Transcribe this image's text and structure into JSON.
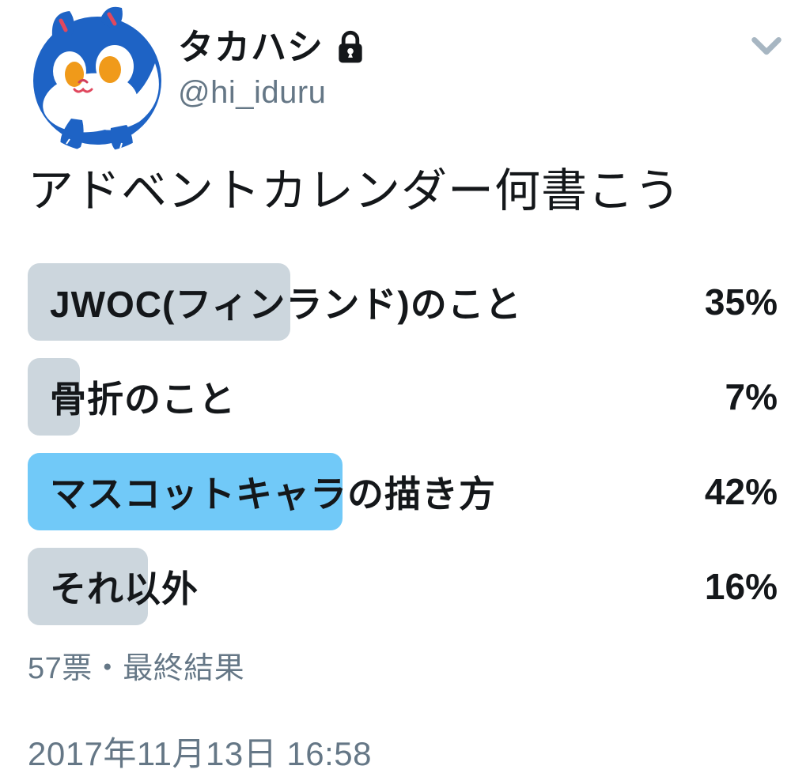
{
  "user": {
    "display_name": "タカハシ",
    "handle": "@hi_iduru",
    "is_protected": true
  },
  "tweet": {
    "text": "アドベントカレンダー何書こう"
  },
  "poll": {
    "options": [
      {
        "label": "JWOC(フィンランド)のこと",
        "percent_label": "35%",
        "value": 35,
        "winner": false
      },
      {
        "label": "骨折のこと",
        "percent_label": "7%",
        "value": 7,
        "winner": false
      },
      {
        "label": "マスコットキャラの描き方",
        "percent_label": "42%",
        "value": 42,
        "winner": true
      },
      {
        "label": "それ以外",
        "percent_label": "16%",
        "value": 16,
        "winner": false
      }
    ],
    "meta": "57票・最終結果",
    "total_votes": 57
  },
  "footer": {
    "timestamp": "2017年11月13日 16:58"
  },
  "colors": {
    "poll_bar_default": "#ccd6dd",
    "poll_bar_winner": "#71c9f8",
    "text_primary": "#14171a",
    "text_secondary": "#657786",
    "avatar_blue": "#1e63c5",
    "avatar_pupil_orange": "#f09a1a",
    "avatar_mouth_red": "#e0485e"
  }
}
